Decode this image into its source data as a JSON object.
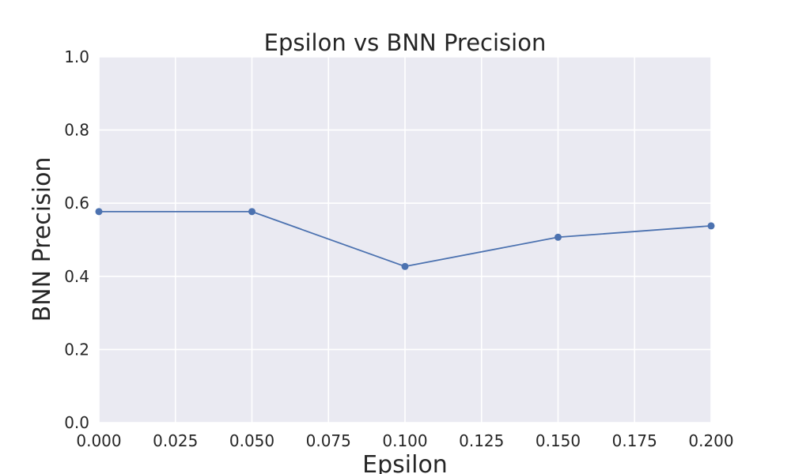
{
  "chart_data": {
    "type": "line",
    "title": "Epsilon vs BNN Precision",
    "xlabel": "Epsilon",
    "ylabel": "BNN Precision",
    "xlim": [
      0.0,
      0.2
    ],
    "ylim": [
      0.0,
      1.0
    ],
    "x_ticks": [
      "0.000",
      "0.025",
      "0.050",
      "0.075",
      "0.100",
      "0.125",
      "0.150",
      "0.175",
      "0.200"
    ],
    "x_tick_values": [
      0.0,
      0.025,
      0.05,
      0.075,
      0.1,
      0.125,
      0.15,
      0.175,
      0.2
    ],
    "y_ticks": [
      "0.0",
      "0.2",
      "0.4",
      "0.6",
      "0.8",
      "1.0"
    ],
    "y_tick_values": [
      0.0,
      0.2,
      0.4,
      0.6,
      0.8,
      1.0
    ],
    "grid": true,
    "series": [
      {
        "x": [
          0.0,
          0.05,
          0.1,
          0.15,
          0.2
        ],
        "values": [
          0.577,
          0.577,
          0.427,
          0.507,
          0.538
        ],
        "color": "#4c72b0",
        "marker": "circle"
      }
    ]
  },
  "style": {
    "plot_background": "#eaeaf2",
    "grid_color": "#ffffff",
    "text_color": "#262626"
  }
}
